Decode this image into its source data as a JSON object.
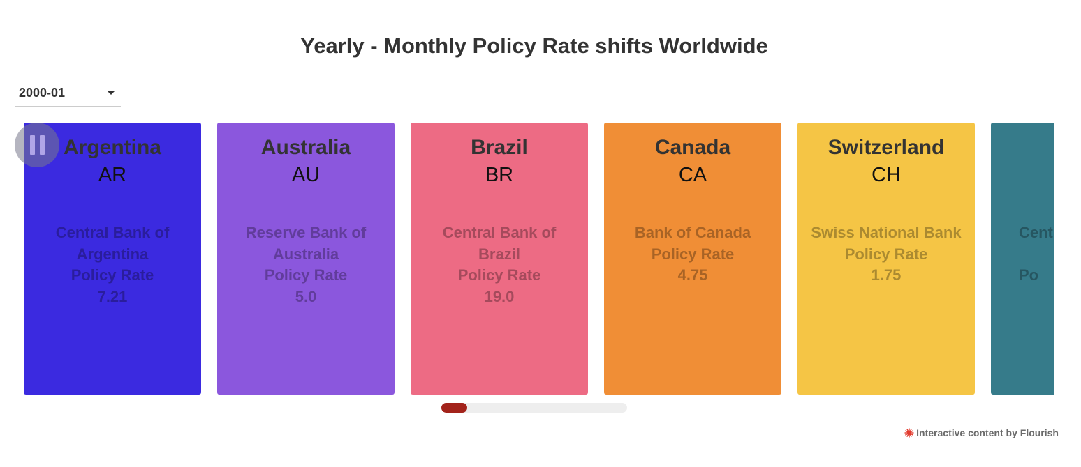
{
  "title": "Yearly - Monthly Policy Rate shifts Worldwide",
  "dropdown": {
    "selected": "2000-01",
    "icon": "chevron-down-icon"
  },
  "controls": {
    "pause_icon": "pause-icon"
  },
  "cards": [
    {
      "country": "Argentina",
      "code": "AR",
      "bank": "Central Bank of\nArgentina\nPolicy Rate",
      "rate": "7.21",
      "color": "#3b2ae0",
      "text_color": "#2a1d9c"
    },
    {
      "country": "Australia",
      "code": "AU",
      "bank": "Reserve Bank of\nAustralia\nPolicy Rate",
      "rate": "5.0",
      "color": "#8b57dd",
      "text_color": "#613c9b"
    },
    {
      "country": "Brazil",
      "code": "BR",
      "bank": "Central Bank of\nBrazil\nPolicy Rate",
      "rate": "19.0",
      "color": "#ed6b84",
      "text_color": "#a54a5c"
    },
    {
      "country": "Canada",
      "code": "CA",
      "bank": "Bank of Canada\nPolicy Rate",
      "rate": "4.75",
      "color": "#f08e36",
      "text_color": "#a86325"
    },
    {
      "country": "Switzerland",
      "code": "CH",
      "bank": "Swiss National Bank\nPolicy Rate",
      "rate": "1.75",
      "color": "#f5c545",
      "text_color": "#ab8a30"
    },
    {
      "country": "",
      "code": "",
      "bank": "Cent\n\nPo",
      "rate": "",
      "color": "#367b8a",
      "text_color": "#265661"
    }
  ],
  "scrollbar": {
    "position": 0.0
  },
  "credit": {
    "text": "Interactive content by Flourish",
    "icon": "flourish-logo-icon",
    "icon_color": "#e23b2e"
  }
}
